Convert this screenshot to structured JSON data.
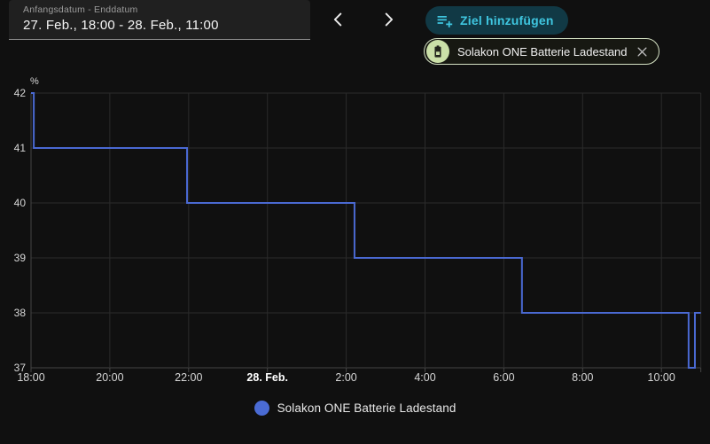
{
  "header": {
    "date_field": {
      "label": "Anfangsdatum - Enddatum",
      "value": "27. Feb., 18:00 - 28. Feb., 11:00"
    },
    "goal_button": {
      "label": "Ziel hinzufügen"
    },
    "entity_chip": {
      "label": "Solakon ONE Batterie Ladestand",
      "avatar_icon": "battery-icon",
      "avatar_color": "#cbe0a8"
    }
  },
  "legend": {
    "items": [
      {
        "label": "Solakon ONE Batterie Ladestand",
        "color": "#4a6bd4"
      }
    ]
  },
  "chart_data": {
    "type": "line",
    "step": "after",
    "title": "",
    "unit": "%",
    "ylabel": "%",
    "ylim": [
      37,
      42
    ],
    "y_ticks": [
      42,
      41,
      40,
      39,
      38,
      37
    ],
    "xlim_hours": [
      0,
      17
    ],
    "x_ticks": [
      {
        "h": 0,
        "label": "18:00",
        "bold": false
      },
      {
        "h": 2,
        "label": "20:00",
        "bold": false
      },
      {
        "h": 4,
        "label": "22:00",
        "bold": false
      },
      {
        "h": 6,
        "label": "28. Feb.",
        "bold": true
      },
      {
        "h": 8,
        "label": "2:00",
        "bold": false
      },
      {
        "h": 10,
        "label": "4:00",
        "bold": false
      },
      {
        "h": 12,
        "label": "6:00",
        "bold": false
      },
      {
        "h": 14,
        "label": "8:00",
        "bold": false
      },
      {
        "h": 16,
        "label": "10:00",
        "bold": false
      }
    ],
    "grid": true,
    "legend_position": "bottom",
    "colors": {
      "grid": "#2b2b2b",
      "axis": "#454545",
      "tick_label": "#d6d6d6",
      "tick_label_bold": "#ffffff"
    },
    "series": [
      {
        "name": "Solakon ONE Batterie Ladestand",
        "color": "#4a69d2",
        "points": [
          {
            "h": 0,
            "time": "18:00",
            "v": 42
          },
          {
            "h": 0.07,
            "time": "18:04",
            "v": 41
          },
          {
            "h": 3.96,
            "time": "21:58",
            "v": 40
          },
          {
            "h": 8.21,
            "time": "02:13",
            "v": 39
          },
          {
            "h": 12.46,
            "time": "06:28",
            "v": 38
          },
          {
            "h": 16.69,
            "time": "10:41",
            "v": 37
          },
          {
            "h": 16.85,
            "time": "10:51",
            "v": 38
          },
          {
            "h": 17.0,
            "time": "11:00",
            "v": 38
          }
        ]
      }
    ]
  }
}
